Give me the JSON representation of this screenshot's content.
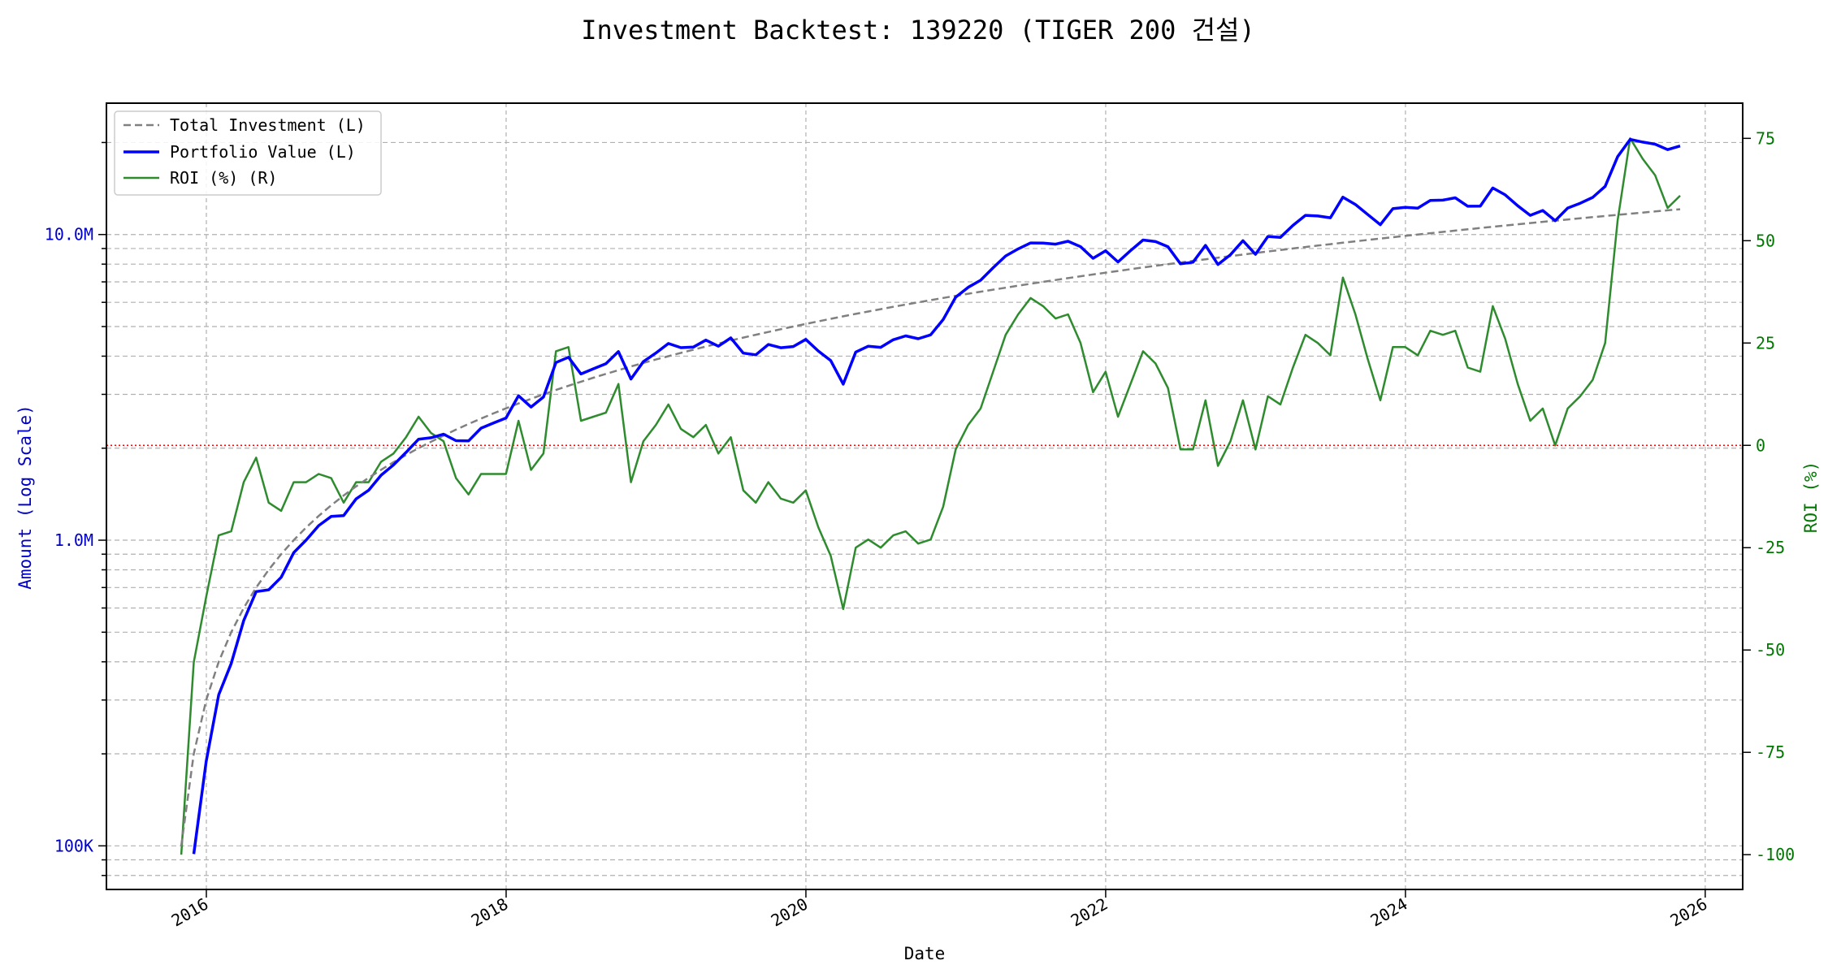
{
  "chart_data": {
    "type": "line",
    "title": "Investment Backtest: 139220 (TIGER 200 건설)",
    "xlabel": "Date",
    "ylabel_left": "Amount (Log Scale)",
    "ylabel_right": "ROI (%)",
    "left_scale": "log",
    "ylim_left": [
      72000,
      26900000
    ],
    "ylim_right": [
      -108.5,
      83.6
    ],
    "xlim": [
      "2015-05",
      "2026-04"
    ],
    "grid": true,
    "legend_placement": "top-left",
    "x_ticks": [
      "2016",
      "2018",
      "2020",
      "2022",
      "2024",
      "2026"
    ],
    "left_ticks": [
      {
        "value": 100000,
        "label": "100K"
      },
      {
        "value": 1000000,
        "label": "1.0M"
      },
      {
        "value": 10000000,
        "label": "10.0M"
      }
    ],
    "right_ticks": [
      75,
      50,
      25,
      0,
      -25,
      -50,
      -75,
      -100
    ],
    "reference_line": {
      "axis": "right",
      "value": 0,
      "color": "#ff0000",
      "style": "dotted"
    },
    "colors": {
      "investment": "#808080",
      "portfolio": "#0000ff",
      "roi": "#2e8b2e",
      "left_axis": "#0000cc",
      "right_axis": "#007700"
    },
    "dates": [
      "2015-10",
      "2015-11",
      "2015-12",
      "2016-01",
      "2016-02",
      "2016-03",
      "2016-04",
      "2016-05",
      "2016-06",
      "2016-07",
      "2016-08",
      "2016-09",
      "2016-10",
      "2016-11",
      "2016-12",
      "2017-01",
      "2017-02",
      "2017-03",
      "2017-04",
      "2017-05",
      "2017-06",
      "2017-07",
      "2017-08",
      "2017-09",
      "2017-10",
      "2017-11",
      "2017-12",
      "2018-01",
      "2018-02",
      "2018-03",
      "2018-04",
      "2018-05",
      "2018-06",
      "2018-07",
      "2018-08",
      "2018-09",
      "2018-10",
      "2018-11",
      "2018-12",
      "2019-01",
      "2019-02",
      "2019-03",
      "2019-04",
      "2019-05",
      "2019-06",
      "2019-07",
      "2019-08",
      "2019-09",
      "2019-10",
      "2019-11",
      "2019-12",
      "2020-01",
      "2020-02",
      "2020-03",
      "2020-04",
      "2020-05",
      "2020-06",
      "2020-07",
      "2020-08",
      "2020-09",
      "2020-10",
      "2020-11",
      "2020-12",
      "2021-01",
      "2021-02",
      "2021-03",
      "2021-04",
      "2021-05",
      "2021-06",
      "2021-07",
      "2021-08",
      "2021-09",
      "2021-10",
      "2021-11",
      "2021-12",
      "2022-01",
      "2022-02",
      "2022-03",
      "2022-04",
      "2022-05",
      "2022-06",
      "2022-07",
      "2022-08",
      "2022-09",
      "2022-10",
      "2022-11",
      "2022-12",
      "2023-01",
      "2023-02",
      "2023-03",
      "2023-04",
      "2023-05",
      "2023-06",
      "2023-07",
      "2023-08",
      "2023-09",
      "2023-10",
      "2023-11",
      "2023-12",
      "2024-01",
      "2024-02",
      "2024-03",
      "2024-04",
      "2024-05",
      "2024-06",
      "2024-07",
      "2024-08",
      "2024-09",
      "2024-10",
      "2024-11",
      "2024-12",
      "2025-01",
      "2025-02",
      "2025-03",
      "2025-04",
      "2025-05",
      "2025-06",
      "2025-07",
      "2025-08",
      "2025-09",
      "2025-10"
    ],
    "series": [
      {
        "name": "Total Investment (L)",
        "axis": "left",
        "style": "dashed",
        "values": [
          100000,
          200000,
          300000,
          400000,
          500000,
          600000,
          700000,
          800000,
          900000,
          1000000,
          1100000,
          1200000,
          1300000,
          1400000,
          1500000,
          1600000,
          1700000,
          1800000,
          1900000,
          2000000,
          2100000,
          2200000,
          2300000,
          2400000,
          2500000,
          2600000,
          2700000,
          2800000,
          2900000,
          3000000,
          3100000,
          3200000,
          3300000,
          3400000,
          3500000,
          3600000,
          3700000,
          3800000,
          3900000,
          4000000,
          4100000,
          4200000,
          4300000,
          4400000,
          4500000,
          4600000,
          4700000,
          4800000,
          4900000,
          5000000,
          5100000,
          5200000,
          5300000,
          5400000,
          5500000,
          5600000,
          5700000,
          5800000,
          5900000,
          6000000,
          6100000,
          6200000,
          6300000,
          6400000,
          6500000,
          6600000,
          6700000,
          6800000,
          6900000,
          7000000,
          7100000,
          7200000,
          7300000,
          7400000,
          7500000,
          7600000,
          7700000,
          7800000,
          7900000,
          8000000,
          8100000,
          8200000,
          8300000,
          8400000,
          8500000,
          8600000,
          8700000,
          8800000,
          8900000,
          9000000,
          9100000,
          9200000,
          9300000,
          9400000,
          9500000,
          9600000,
          9700000,
          9800000,
          9900000,
          10000000,
          10100000,
          10200000,
          10300000,
          10400000,
          10500000,
          10600000,
          10700000,
          10800000,
          10900000,
          11000000,
          11100000,
          11200000,
          11300000,
          11400000,
          11500000,
          11600000,
          11700000,
          11800000,
          11900000,
          12000000,
          12100000
        ]
      },
      {
        "name": "Portfolio Value (L)",
        "axis": "left",
        "style": "solid",
        "values": [
          0,
          94000,
          189000,
          312000,
          395000,
          546000,
          679000,
          688000,
          756000,
          910000,
          1001000,
          1116000,
          1196000,
          1204000,
          1365000,
          1456000,
          1632000,
          1764000,
          1938000,
          2140000,
          2163000,
          2222000,
          2116000,
          2112000,
          2325000,
          2418000,
          2511000,
          2968000,
          2726000,
          2940000,
          3813000,
          3968000,
          3498000,
          3638000,
          3780000,
          4140000,
          3367000,
          3838000,
          4095000,
          4400000,
          4264000,
          4284000,
          4515000,
          4312000,
          4590000,
          4094000,
          4042000,
          4368000,
          4263000,
          4300000,
          4539000,
          4160000,
          3869000,
          3240000,
          4125000,
          4312000,
          4275000,
          4524000,
          4661000,
          4560000,
          4697000,
          5270000,
          6237000,
          6720000,
          7085000,
          7788000,
          8509000,
          8976000,
          9384000,
          9380000,
          9301000,
          9504000,
          9125000,
          8362000,
          8850000,
          8132000,
          8855000,
          9594000,
          9480000,
          9120000,
          8019000,
          8118000,
          9213000,
          7980000,
          8585000,
          9546000,
          8613000,
          9856000,
          9790000,
          10710000,
          11557000,
          11500000,
          11346000,
          13254000,
          12540000,
          11616000,
          10767000,
          12152000,
          12276000,
          12200000,
          12928000,
          12954000,
          13184000,
          12376000,
          12390000,
          14204000,
          13482000,
          12420000,
          11554000,
          11990000,
          11100000,
          12208000,
          12656000,
          13224000,
          14375000,
          17980000,
          20475000,
          20060000,
          19754000,
          18960000,
          19481000
        ]
      },
      {
        "name": "ROI (%) (R)",
        "axis": "right",
        "style": "solid",
        "values": [
          -100,
          -53,
          -37,
          -22,
          -21,
          -9,
          -3,
          -14,
          -16,
          -9,
          -9,
          -7,
          -8,
          -14,
          -9,
          -9,
          -4,
          -2,
          2,
          7,
          3,
          1,
          -8,
          -12,
          -7,
          -7,
          -7,
          6,
          -6,
          -2,
          23,
          24,
          6,
          7,
          8,
          15,
          -9,
          1,
          5,
          10,
          4,
          2,
          5,
          -2,
          2,
          -11,
          -14,
          -9,
          -13,
          -14,
          -11,
          -20,
          -27,
          -40,
          -25,
          -23,
          -25,
          -22,
          -21,
          -24,
          -23,
          -15,
          -1,
          5,
          9,
          18,
          27,
          32,
          36,
          34,
          31,
          32,
          25,
          13,
          18,
          7,
          15,
          23,
          20,
          14,
          -1,
          -1,
          11,
          -5,
          1,
          11,
          -1,
          12,
          10,
          19,
          27,
          25,
          22,
          41,
          32,
          21,
          11,
          24,
          24,
          22,
          28,
          27,
          28,
          19,
          18,
          34,
          26,
          15,
          6,
          9,
          0,
          9,
          12,
          16,
          25,
          55,
          75,
          70,
          66,
          58,
          61
        ]
      }
    ]
  }
}
